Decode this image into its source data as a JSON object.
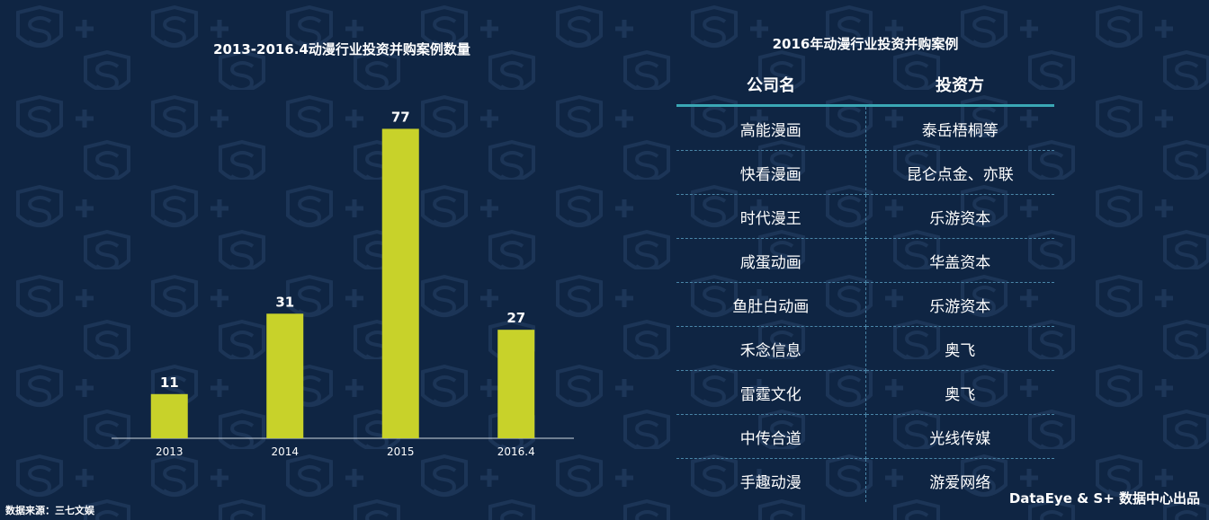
{
  "chart_data": {
    "type": "bar",
    "title": "2013-2016.4动漫行业投资并购案例数量",
    "categories": [
      "2013",
      "2014",
      "2015",
      "2016.4"
    ],
    "values": [
      11,
      31,
      77,
      27
    ],
    "ylim": [
      0,
      80
    ],
    "grid": false,
    "bar_color": "#c8d22a",
    "data_labels": true
  },
  "table": {
    "title": "2016年动漫行业投资并购案例",
    "headers": [
      "公司名",
      "投资方"
    ],
    "rows": [
      [
        "高能漫画",
        "泰岳梧桐等"
      ],
      [
        "快看漫画",
        "昆仑点金、亦联"
      ],
      [
        "时代漫王",
        "乐游资本"
      ],
      [
        "咸蛋动画",
        "华盖资本"
      ],
      [
        "鱼肚白动画",
        "乐游资本"
      ],
      [
        "禾念信息",
        "奥飞"
      ],
      [
        "雷霆文化",
        "奥飞"
      ],
      [
        "中传合道",
        "光线传媒"
      ],
      [
        "手趣动漫",
        "游爱网络"
      ]
    ],
    "header_rule_color": "#3aa7b5"
  },
  "footer": {
    "source": "数据来源：三七文娱",
    "brand": "DataEye & S+ 数据中心出品"
  },
  "background": {
    "color": "#0f2543",
    "watermark_icon": "s-plus-shield-icon"
  }
}
